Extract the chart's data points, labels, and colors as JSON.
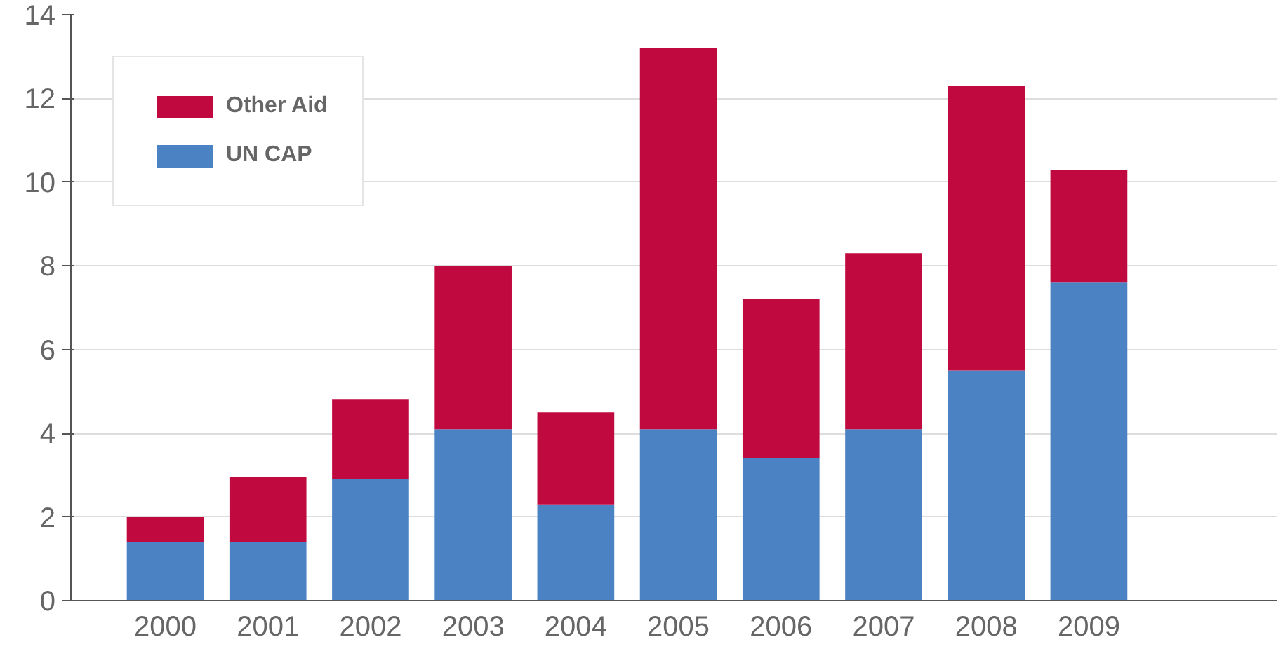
{
  "chart_data": {
    "type": "bar",
    "stacked": true,
    "categories": [
      "2000",
      "2001",
      "2002",
      "2003",
      "2004",
      "2005",
      "2006",
      "2007",
      "2008",
      "2009"
    ],
    "series": [
      {
        "name": "UN CAP",
        "color": "#4a82c4",
        "values": [
          1.4,
          1.4,
          2.9,
          4.1,
          2.3,
          4.1,
          3.4,
          4.1,
          5.5,
          7.6
        ]
      },
      {
        "name": "Other Aid",
        "color": "#c0093f",
        "values": [
          0.6,
          1.55,
          1.9,
          3.9,
          2.2,
          9.1,
          3.8,
          4.2,
          6.8,
          2.7
        ]
      }
    ],
    "ylim": [
      0,
      14
    ],
    "yticks": [
      0,
      2,
      4,
      6,
      8,
      10,
      12,
      14
    ],
    "grid": "y",
    "legend": "top left"
  }
}
